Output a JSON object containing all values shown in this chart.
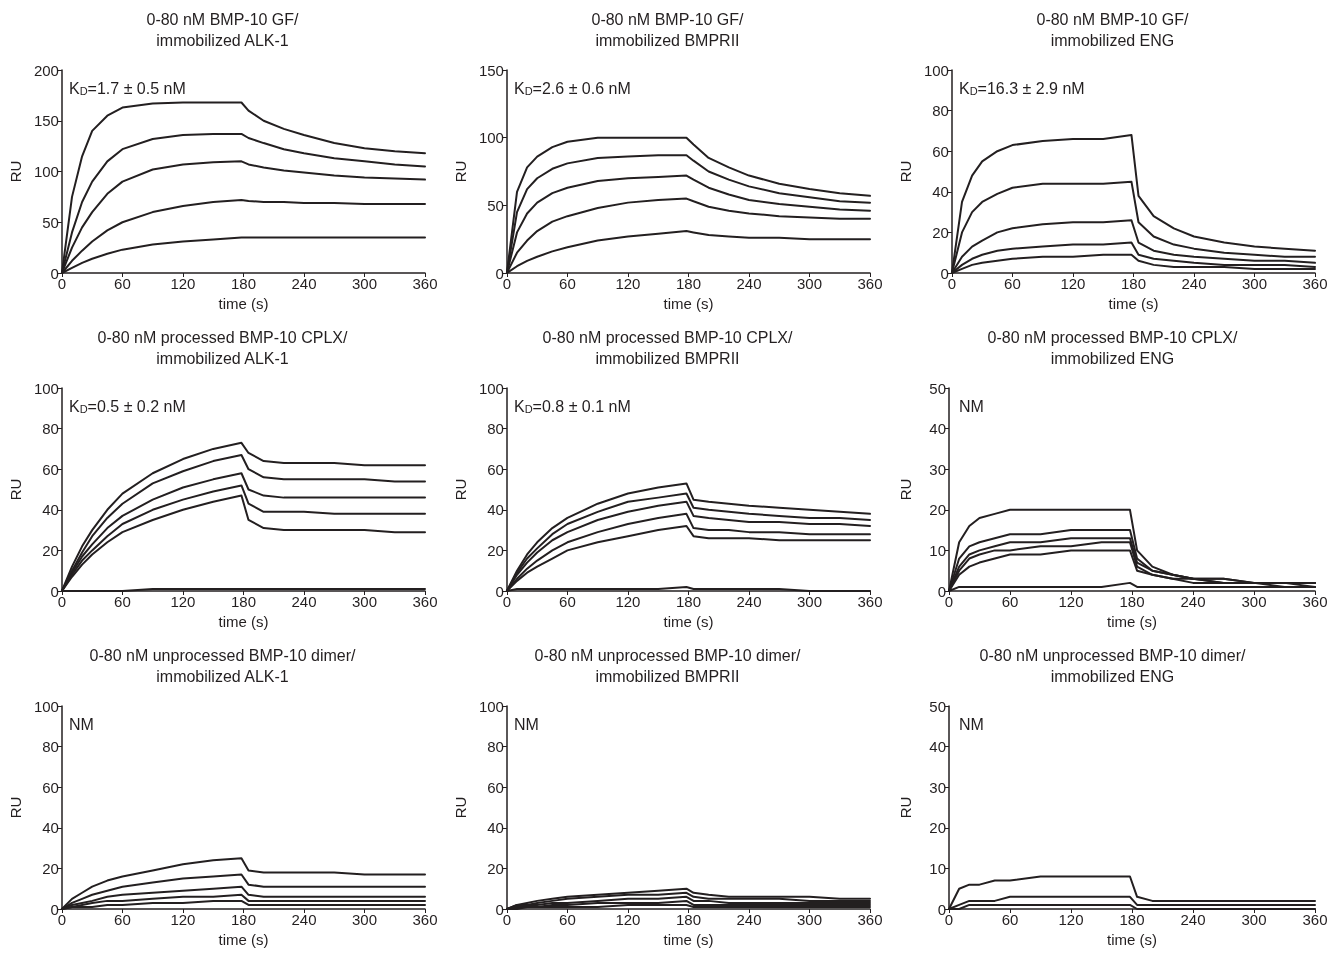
{
  "chart_data": [
    {
      "type": "line",
      "title": "0-80 nM BMP-10 GF/\nimmobilized ALK-1",
      "xlabel": "time (s)",
      "ylabel": "RU",
      "xlim": [
        0,
        360
      ],
      "xticks": [
        0,
        60,
        120,
        180,
        240,
        300,
        360
      ],
      "ylim": [
        0,
        200
      ],
      "yticks": [
        0,
        50,
        100,
        150,
        200
      ],
      "marker": "none",
      "line_style": "solid",
      "annotations": [
        "K$_{D}$=1.7 ± 0.5 nM"
      ],
      "x": [
        0,
        10,
        20,
        30,
        45,
        60,
        90,
        120,
        150,
        178,
        185,
        200,
        220,
        240,
        270,
        300,
        330,
        360
      ],
      "series": [
        {
          "color": "#231f20",
          "values": [
            0,
            75,
            115,
            140,
            155,
            163,
            167,
            168,
            168,
            168,
            160,
            150,
            142,
            136,
            128,
            123,
            120,
            118
          ]
        },
        {
          "color": "#231f20",
          "values": [
            0,
            40,
            70,
            90,
            110,
            122,
            132,
            136,
            137,
            137,
            133,
            128,
            122,
            118,
            113,
            110,
            107,
            105
          ]
        },
        {
          "color": "#231f20",
          "values": [
            0,
            25,
            45,
            60,
            78,
            90,
            102,
            107,
            109,
            110,
            107,
            104,
            101,
            99,
            96,
            94,
            93,
            92
          ]
        },
        {
          "color": "#231f20",
          "values": [
            0,
            12,
            22,
            31,
            42,
            50,
            60,
            66,
            70,
            72,
            71,
            70,
            70,
            69,
            69,
            68,
            68,
            68
          ]
        },
        {
          "color": "#231f20",
          "values": [
            0,
            5,
            10,
            14,
            19,
            23,
            28,
            31,
            33,
            35,
            35,
            35,
            35,
            35,
            35,
            35,
            35,
            35
          ]
        }
      ]
    },
    {
      "type": "line",
      "title": "0-80 nM BMP-10 GF/\nimmobilized BMPRII",
      "xlabel": "time (s)",
      "ylabel": "RU",
      "xlim": [
        0,
        360
      ],
      "xticks": [
        0,
        60,
        120,
        180,
        240,
        300,
        360
      ],
      "ylim": [
        0,
        150
      ],
      "yticks": [
        0,
        50,
        100,
        150
      ],
      "marker": "none",
      "line_style": "solid",
      "annotations": [
        "K$_{D}$=2.6 ± 0.6 nM"
      ],
      "x": [
        0,
        10,
        20,
        30,
        45,
        60,
        90,
        120,
        150,
        178,
        185,
        200,
        220,
        240,
        270,
        300,
        330,
        360
      ],
      "series": [
        {
          "color": "#231f20",
          "values": [
            0,
            60,
            78,
            86,
            93,
            97,
            100,
            100,
            100,
            100,
            95,
            85,
            78,
            72,
            66,
            62,
            59,
            57
          ]
        },
        {
          "color": "#231f20",
          "values": [
            0,
            45,
            62,
            70,
            77,
            81,
            85,
            86,
            87,
            87,
            83,
            75,
            69,
            64,
            59,
            56,
            53,
            52
          ]
        },
        {
          "color": "#231f20",
          "values": [
            0,
            30,
            44,
            52,
            59,
            63,
            68,
            70,
            71,
            72,
            69,
            63,
            58,
            54,
            51,
            49,
            47,
            46
          ]
        },
        {
          "color": "#231f20",
          "values": [
            0,
            15,
            24,
            31,
            38,
            42,
            48,
            52,
            54,
            55,
            53,
            49,
            46,
            44,
            42,
            41,
            40,
            40
          ]
        },
        {
          "color": "#231f20",
          "values": [
            0,
            5,
            9,
            12,
            16,
            19,
            24,
            27,
            29,
            31,
            30,
            28,
            27,
            26,
            26,
            25,
            25,
            25
          ]
        }
      ]
    },
    {
      "type": "line",
      "title": "0-80 nM BMP-10 GF/\nimmobilized ENG",
      "xlabel": "time (s)",
      "ylabel": "RU",
      "xlim": [
        0,
        360
      ],
      "xticks": [
        0,
        60,
        120,
        180,
        240,
        300,
        360
      ],
      "ylim": [
        0,
        100
      ],
      "yticks": [
        0,
        20,
        40,
        60,
        80,
        100
      ],
      "marker": "none",
      "line_style": "solid",
      "annotations": [
        "K$_{D}$=16.3 ± 2.9 nM"
      ],
      "x": [
        0,
        10,
        20,
        30,
        45,
        60,
        90,
        120,
        150,
        178,
        185,
        200,
        220,
        240,
        270,
        300,
        330,
        360
      ],
      "series": [
        {
          "color": "#231f20",
          "values": [
            0,
            35,
            48,
            55,
            60,
            63,
            65,
            66,
            66,
            68,
            38,
            28,
            22,
            18,
            15,
            13,
            12,
            11
          ]
        },
        {
          "color": "#231f20",
          "values": [
            0,
            20,
            30,
            35,
            39,
            42,
            44,
            44,
            44,
            45,
            25,
            18,
            14,
            12,
            10,
            9,
            8,
            8
          ]
        },
        {
          "color": "#231f20",
          "values": [
            0,
            8,
            13,
            16,
            20,
            22,
            24,
            25,
            25,
            26,
            15,
            11,
            9,
            8,
            7,
            6,
            6,
            5
          ]
        },
        {
          "color": "#231f20",
          "values": [
            0,
            4,
            7,
            9,
            11,
            12,
            13,
            14,
            14,
            15,
            9,
            7,
            6,
            5,
            4,
            4,
            4,
            3
          ]
        },
        {
          "color": "#231f20",
          "values": [
            0,
            2,
            4,
            5,
            6,
            7,
            8,
            8,
            9,
            9,
            6,
            4,
            3,
            3,
            3,
            2,
            2,
            2
          ]
        }
      ]
    },
    {
      "type": "line",
      "title": "0-80 nM processed BMP-10 CPLX/\nimmobilized ALK-1",
      "xlabel": "time (s)",
      "ylabel": "RU",
      "xlim": [
        0,
        360
      ],
      "xticks": [
        0,
        60,
        120,
        180,
        240,
        300,
        360
      ],
      "ylim": [
        0,
        100
      ],
      "yticks": [
        0,
        20,
        40,
        60,
        80,
        100
      ],
      "marker": "none",
      "line_style": "solid",
      "annotations": [
        "K$_{D}$=0.5 ± 0.2 nM"
      ],
      "x": [
        0,
        10,
        20,
        30,
        45,
        60,
        90,
        120,
        150,
        178,
        185,
        200,
        220,
        240,
        270,
        300,
        330,
        360
      ],
      "series": [
        {
          "color": "#231f20",
          "values": [
            0,
            12,
            22,
            30,
            40,
            48,
            58,
            65,
            70,
            73,
            68,
            64,
            63,
            63,
            63,
            62,
            62,
            62
          ]
        },
        {
          "color": "#231f20",
          "values": [
            0,
            10,
            19,
            27,
            36,
            43,
            53,
            59,
            64,
            67,
            60,
            56,
            55,
            55,
            55,
            55,
            54,
            54
          ]
        },
        {
          "color": "#231f20",
          "values": [
            0,
            9,
            17,
            23,
            31,
            37,
            45,
            51,
            55,
            58,
            50,
            47,
            46,
            46,
            46,
            46,
            46,
            46
          ]
        },
        {
          "color": "#231f20",
          "values": [
            0,
            8,
            15,
            20,
            27,
            33,
            40,
            45,
            49,
            52,
            43,
            39,
            39,
            39,
            38,
            38,
            38,
            38
          ]
        },
        {
          "color": "#231f20",
          "values": [
            0,
            7,
            13,
            18,
            24,
            29,
            35,
            40,
            44,
            47,
            35,
            31,
            30,
            30,
            30,
            30,
            29,
            29
          ]
        },
        {
          "color": "#231f20",
          "values": [
            0,
            0,
            0,
            0,
            0,
            0,
            1,
            1,
            1,
            1,
            1,
            1,
            1,
            1,
            1,
            1,
            1,
            1
          ]
        }
      ]
    },
    {
      "type": "line",
      "title": "0-80 nM processed BMP-10 CPLX/\nimmobilized BMPRII",
      "xlabel": "time (s)",
      "ylabel": "RU",
      "xlim": [
        0,
        360
      ],
      "xticks": [
        0,
        60,
        120,
        180,
        240,
        300,
        360
      ],
      "ylim": [
        0,
        100
      ],
      "yticks": [
        0,
        20,
        40,
        60,
        80,
        100
      ],
      "marker": "none",
      "line_style": "solid",
      "annotations": [
        "K$_{D}$=0.8 ± 0.1 nM"
      ],
      "x": [
        0,
        10,
        20,
        30,
        45,
        60,
        90,
        120,
        150,
        178,
        185,
        200,
        220,
        240,
        270,
        300,
        330,
        360
      ],
      "series": [
        {
          "color": "#231f20",
          "values": [
            0,
            10,
            18,
            24,
            31,
            36,
            43,
            48,
            51,
            53,
            45,
            44,
            43,
            42,
            41,
            40,
            39,
            38
          ]
        },
        {
          "color": "#231f20",
          "values": [
            0,
            9,
            16,
            21,
            28,
            33,
            39,
            44,
            46,
            48,
            41,
            40,
            39,
            38,
            37,
            36,
            36,
            35
          ]
        },
        {
          "color": "#231f20",
          "values": [
            0,
            8,
            14,
            19,
            25,
            29,
            35,
            39,
            42,
            44,
            37,
            36,
            35,
            34,
            34,
            33,
            33,
            32
          ]
        },
        {
          "color": "#231f20",
          "values": [
            0,
            6,
            11,
            15,
            20,
            24,
            29,
            33,
            36,
            38,
            31,
            30,
            30,
            29,
            29,
            28,
            28,
            28
          ]
        },
        {
          "color": "#231f20",
          "values": [
            0,
            5,
            9,
            12,
            16,
            20,
            24,
            27,
            30,
            32,
            27,
            26,
            26,
            26,
            25,
            25,
            25,
            25
          ]
        },
        {
          "color": "#231f20",
          "values": [
            0,
            1,
            1,
            1,
            1,
            1,
            1,
            1,
            1,
            2,
            1,
            1,
            1,
            1,
            1,
            0,
            0,
            0
          ]
        }
      ]
    },
    {
      "type": "line",
      "title": "0-80 nM processed BMP-10 CPLX/\nimmobilized ENG",
      "xlabel": "time (s)",
      "ylabel": "RU",
      "xlim": [
        0,
        360
      ],
      "xticks": [
        0,
        60,
        120,
        180,
        240,
        300,
        360
      ],
      "ylim": [
        0,
        50
      ],
      "yticks": [
        0,
        10,
        20,
        30,
        40,
        50
      ],
      "marker": "none",
      "line_style": "solid",
      "annotations": [
        "NM"
      ],
      "x": [
        0,
        10,
        20,
        30,
        45,
        60,
        90,
        120,
        150,
        178,
        185,
        200,
        220,
        240,
        270,
        300,
        330,
        360
      ],
      "series": [
        {
          "color": "#231f20",
          "values": [
            0,
            12,
            16,
            18,
            19,
            20,
            20,
            20,
            20,
            20,
            10,
            6,
            4,
            3,
            3,
            2,
            2,
            2
          ]
        },
        {
          "color": "#231f20",
          "values": [
            0,
            8,
            11,
            12,
            13,
            14,
            14,
            15,
            15,
            15,
            8,
            5,
            4,
            3,
            3,
            2,
            2,
            2
          ]
        },
        {
          "color": "#231f20",
          "values": [
            0,
            6,
            9,
            10,
            11,
            12,
            12,
            13,
            13,
            13,
            7,
            5,
            4,
            3,
            2,
            2,
            2,
            2
          ]
        },
        {
          "color": "#231f20",
          "values": [
            0,
            5,
            8,
            9,
            10,
            10,
            11,
            11,
            12,
            12,
            6,
            4,
            3,
            3,
            2,
            2,
            2,
            1
          ]
        },
        {
          "color": "#231f20",
          "values": [
            0,
            4,
            6,
            7,
            8,
            9,
            9,
            10,
            10,
            10,
            5,
            4,
            3,
            2,
            2,
            2,
            1,
            1
          ]
        },
        {
          "color": "#231f20",
          "values": [
            0,
            1,
            1,
            1,
            1,
            1,
            1,
            1,
            1,
            2,
            1,
            1,
            1,
            1,
            1,
            1,
            1,
            1
          ]
        }
      ]
    },
    {
      "type": "line",
      "title": "0-80 nM unprocessed BMP-10 dimer/\nimmobilized ALK-1",
      "xlabel": "time (s)",
      "ylabel": "RU",
      "xlim": [
        0,
        360
      ],
      "xticks": [
        0,
        60,
        120,
        180,
        240,
        300,
        360
      ],
      "ylim": [
        0,
        100
      ],
      "yticks": [
        0,
        20,
        40,
        60,
        80,
        100
      ],
      "marker": "none",
      "line_style": "solid",
      "annotations": [
        "NM"
      ],
      "x": [
        0,
        10,
        20,
        30,
        45,
        60,
        90,
        120,
        150,
        178,
        185,
        200,
        220,
        240,
        270,
        300,
        330,
        360
      ],
      "series": [
        {
          "color": "#231f20",
          "values": [
            0,
            5,
            8,
            11,
            14,
            16,
            19,
            22,
            24,
            25,
            19,
            18,
            18,
            18,
            18,
            17,
            17,
            17
          ]
        },
        {
          "color": "#231f20",
          "values": [
            0,
            3,
            5,
            7,
            9,
            11,
            13,
            15,
            16,
            17,
            12,
            11,
            11,
            11,
            11,
            11,
            11,
            11
          ]
        },
        {
          "color": "#231f20",
          "values": [
            0,
            2,
            3,
            4,
            6,
            7,
            8,
            9,
            10,
            11,
            7,
            6,
            6,
            6,
            6,
            6,
            6,
            6
          ]
        },
        {
          "color": "#231f20",
          "values": [
            0,
            1,
            2,
            3,
            4,
            4,
            5,
            6,
            6,
            7,
            4,
            4,
            4,
            4,
            4,
            4,
            4,
            4
          ]
        },
        {
          "color": "#231f20",
          "values": [
            0,
            1,
            1,
            1,
            2,
            2,
            3,
            3,
            4,
            4,
            2,
            2,
            2,
            2,
            2,
            2,
            2,
            2
          ]
        }
      ]
    },
    {
      "type": "line",
      "title": "0-80 nM unprocessed BMP-10 dimer/\nimmobilized BMPRII",
      "xlabel": "time (s)",
      "ylabel": "RU",
      "xlim": [
        0,
        360
      ],
      "xticks": [
        0,
        60,
        120,
        180,
        240,
        300,
        360
      ],
      "ylim": [
        0,
        100
      ],
      "yticks": [
        0,
        20,
        40,
        60,
        80,
        100
      ],
      "marker": "none",
      "line_style": "solid",
      "annotations": [
        "NM"
      ],
      "x": [
        0,
        10,
        20,
        30,
        45,
        60,
        90,
        120,
        150,
        178,
        185,
        200,
        220,
        240,
        270,
        300,
        330,
        360
      ],
      "series": [
        {
          "color": "#231f20",
          "values": [
            0,
            2,
            3,
            4,
            5,
            6,
            7,
            8,
            9,
            10,
            8,
            7,
            6,
            6,
            6,
            6,
            5,
            5
          ]
        },
        {
          "color": "#231f20",
          "values": [
            0,
            2,
            2,
            3,
            4,
            5,
            6,
            7,
            7,
            8,
            6,
            5,
            5,
            5,
            5,
            4,
            4,
            4
          ]
        },
        {
          "color": "#231f20",
          "values": [
            0,
            1,
            2,
            2,
            3,
            3,
            4,
            5,
            5,
            6,
            4,
            4,
            3,
            3,
            3,
            3,
            3,
            3
          ]
        },
        {
          "color": "#231f20",
          "values": [
            0,
            1,
            1,
            1,
            2,
            2,
            3,
            3,
            3,
            4,
            2,
            2,
            2,
            2,
            2,
            2,
            2,
            2
          ]
        },
        {
          "color": "#231f20",
          "values": [
            0,
            0,
            1,
            1,
            1,
            1,
            1,
            2,
            2,
            2,
            1,
            1,
            1,
            1,
            1,
            1,
            1,
            1
          ]
        }
      ]
    },
    {
      "type": "line",
      "title": "0-80 nM unprocessed BMP-10 dimer/\nimmobilized ENG",
      "xlabel": "time (s)",
      "ylabel": "RU",
      "xlim": [
        0,
        360
      ],
      "xticks": [
        0,
        60,
        120,
        180,
        240,
        300,
        360
      ],
      "ylim": [
        0,
        50
      ],
      "yticks": [
        0,
        10,
        20,
        30,
        40,
        50
      ],
      "marker": "none",
      "line_style": "solid",
      "annotations": [
        "NM"
      ],
      "x": [
        0,
        10,
        20,
        30,
        45,
        60,
        90,
        120,
        150,
        178,
        185,
        200,
        220,
        240,
        270,
        300,
        330,
        360
      ],
      "series": [
        {
          "color": "#231f20",
          "values": [
            0,
            5,
            6,
            6,
            7,
            7,
            8,
            8,
            8,
            8,
            3,
            2,
            2,
            2,
            2,
            2,
            2,
            2
          ]
        },
        {
          "color": "#231f20",
          "values": [
            0,
            1,
            2,
            2,
            2,
            3,
            3,
            3,
            3,
            3,
            1,
            1,
            1,
            1,
            1,
            1,
            1,
            1
          ]
        },
        {
          "color": "#231f20",
          "values": [
            0,
            0,
            1,
            1,
            1,
            1,
            1,
            1,
            1,
            1,
            0,
            0,
            0,
            0,
            0,
            0,
            0,
            0
          ]
        }
      ]
    }
  ]
}
